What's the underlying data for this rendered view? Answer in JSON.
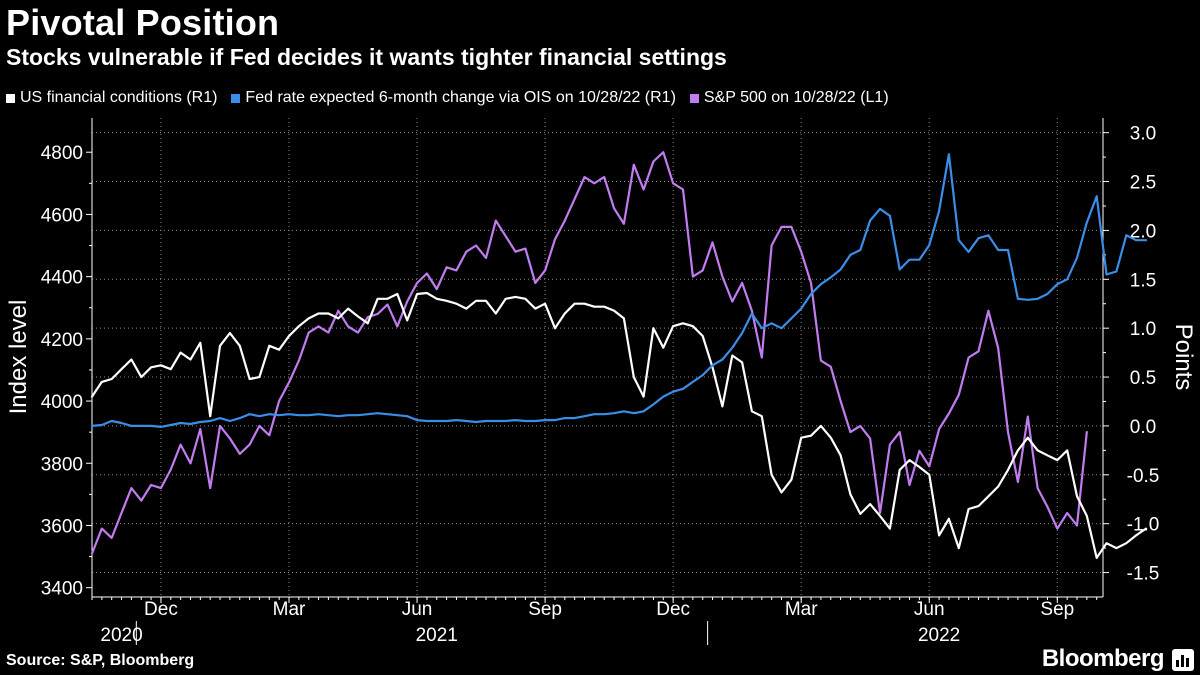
{
  "header": {
    "title": "Pivotal Position",
    "subtitle": "Stocks vulnerable if Fed decides it wants tighter financial settings"
  },
  "footer": {
    "source": "Source: S&P, Bloomberg",
    "brand": "Bloomberg"
  },
  "chart_data": {
    "type": "line",
    "title": "Pivotal Position",
    "subtitle": "Stocks vulnerable if Fed decides it wants tighter financial settings",
    "left_axis": {
      "label": "Index level",
      "range": [
        3370,
        4910
      ],
      "ticks": [
        3400,
        3600,
        3800,
        4000,
        4200,
        4400,
        4600,
        4800
      ]
    },
    "right_axis": {
      "label": "Points",
      "range": [
        -1.75,
        3.15
      ],
      "ticks": [
        "-1.5",
        "-1.0",
        "-0.5",
        "0.0",
        "0.5",
        "1.0",
        "1.5",
        "2.0",
        "2.5",
        "3.0"
      ]
    },
    "x_axis": {
      "month_ticks": [
        {
          "label": "Dec",
          "week": 7
        },
        {
          "label": "Mar",
          "week": 20
        },
        {
          "label": "Jun",
          "week": 33
        },
        {
          "label": "Sep",
          "week": 46
        },
        {
          "label": "Dec",
          "week": 59
        },
        {
          "label": "Mar",
          "week": 72
        },
        {
          "label": "Jun",
          "week": 85
        },
        {
          "label": "Sep",
          "week": 98
        }
      ],
      "year_labels": [
        {
          "label": "2020",
          "week": 3
        },
        {
          "label": "2021",
          "week": 35
        },
        {
          "label": "2022",
          "week": 86
        }
      ],
      "year_dividers": [
        4.5,
        62.5
      ]
    },
    "grid": true,
    "legend_position": "top",
    "series": [
      {
        "name": "US financial conditions  (R1)",
        "color": "#ffffff",
        "axis": "right",
        "values": [
          0.3,
          0.45,
          0.48,
          0.58,
          0.68,
          0.5,
          0.6,
          0.62,
          0.58,
          0.75,
          0.68,
          0.85,
          0.1,
          0.82,
          0.95,
          0.82,
          0.48,
          0.5,
          0.82,
          0.78,
          0.92,
          1.02,
          1.1,
          1.15,
          1.15,
          1.1,
          1.2,
          1.12,
          1.05,
          1.3,
          1.3,
          1.35,
          1.08,
          1.35,
          1.36,
          1.3,
          1.28,
          1.25,
          1.2,
          1.28,
          1.28,
          1.15,
          1.3,
          1.32,
          1.3,
          1.2,
          1.25,
          1.0,
          1.15,
          1.25,
          1.25,
          1.22,
          1.22,
          1.18,
          1.1,
          0.5,
          0.3,
          1.0,
          0.8,
          1.02,
          1.05,
          1.02,
          0.92,
          0.6,
          0.2,
          0.72,
          0.65,
          0.15,
          0.1,
          -0.5,
          -0.68,
          -0.55,
          -0.12,
          -0.1,
          0.0,
          -0.12,
          -0.3,
          -0.7,
          -0.9,
          -0.8,
          -0.92,
          -1.05,
          -0.45,
          -0.35,
          -0.42,
          -0.5,
          -1.12,
          -0.95,
          -1.25,
          -0.85,
          -0.82,
          -0.72,
          -0.62,
          -0.45,
          -0.25,
          -0.12,
          -0.25,
          -0.3,
          -0.35,
          -0.25,
          -0.72,
          -0.92,
          -1.35,
          -1.2,
          -1.25,
          -1.2,
          -1.12,
          -1.05
        ]
      },
      {
        "name": "Fed rate expected 6-month change via OIS  on 10/28/22 (R1)",
        "color": "#3a8ee8",
        "axis": "right",
        "values": [
          0.0,
          0.01,
          0.05,
          0.03,
          0.0,
          0.0,
          0.0,
          -0.01,
          0.01,
          0.03,
          0.02,
          0.04,
          0.05,
          0.08,
          0.05,
          0.08,
          0.12,
          0.1,
          0.12,
          0.11,
          0.12,
          0.11,
          0.11,
          0.12,
          0.11,
          0.1,
          0.11,
          0.11,
          0.12,
          0.13,
          0.12,
          0.11,
          0.1,
          0.06,
          0.05,
          0.05,
          0.05,
          0.06,
          0.05,
          0.04,
          0.05,
          0.05,
          0.05,
          0.06,
          0.05,
          0.05,
          0.06,
          0.06,
          0.08,
          0.08,
          0.1,
          0.12,
          0.12,
          0.13,
          0.15,
          0.13,
          0.15,
          0.22,
          0.3,
          0.35,
          0.38,
          0.45,
          0.52,
          0.62,
          0.68,
          0.8,
          0.95,
          1.15,
          1.0,
          1.05,
          1.0,
          1.1,
          1.2,
          1.35,
          1.45,
          1.52,
          1.6,
          1.75,
          1.8,
          2.1,
          2.22,
          2.15,
          1.6,
          1.7,
          1.7,
          1.85,
          2.2,
          2.78,
          1.9,
          1.78,
          1.92,
          1.95,
          1.8,
          1.8,
          1.3,
          1.29,
          1.3,
          1.35,
          1.45,
          1.5,
          1.72,
          2.08,
          2.35,
          1.55,
          1.58,
          1.95,
          1.9,
          1.9
        ]
      },
      {
        "name": "S&P 500 on 10/28/22 (L1)",
        "color": "#c17cf0",
        "axis": "left",
        "values": [
          3510,
          3590,
          3560,
          3640,
          3720,
          3680,
          3730,
          3720,
          3780,
          3860,
          3800,
          3910,
          3720,
          3920,
          3880,
          3830,
          3860,
          3920,
          3890,
          4000,
          4060,
          4130,
          4220,
          4240,
          4220,
          4290,
          4240,
          4220,
          4270,
          4280,
          4310,
          4240,
          4320,
          4380,
          4410,
          4360,
          4430,
          4420,
          4480,
          4500,
          4460,
          4580,
          4530,
          4480,
          4490,
          4380,
          4420,
          4520,
          4580,
          4650,
          4720,
          4700,
          4720,
          4620,
          4570,
          4760,
          4680,
          4770,
          4800,
          4700,
          4680,
          4400,
          4420,
          4510,
          4400,
          4320,
          4380,
          4290,
          4140,
          4500,
          4560,
          4560,
          4480,
          4380,
          4130,
          4110,
          4000,
          3900,
          3920,
          3880,
          3640,
          3860,
          3900,
          3730,
          3840,
          3790,
          3910,
          3960,
          4020,
          4140,
          4160,
          4290,
          4170,
          3900,
          3740,
          3950,
          3720,
          3660,
          3590,
          3640,
          3600,
          3900
        ]
      }
    ]
  }
}
